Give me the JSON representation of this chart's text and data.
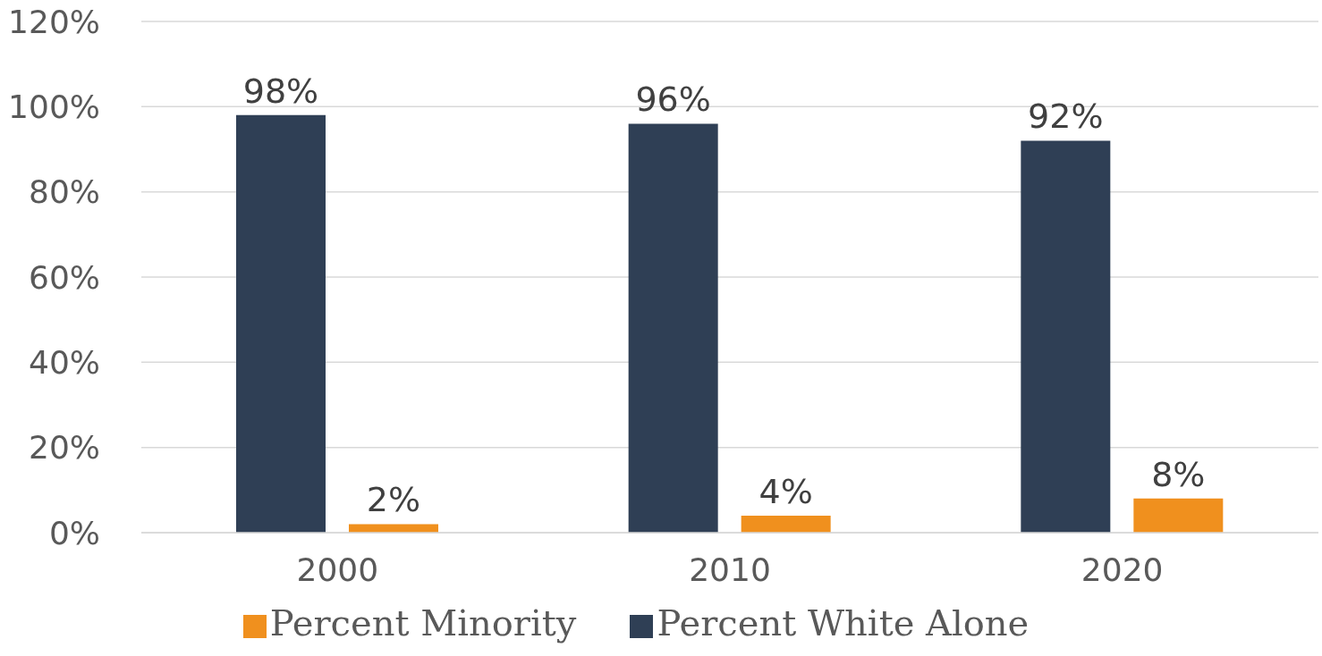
{
  "chart_data": {
    "type": "bar",
    "categories": [
      "2000",
      "2010",
      "2020"
    ],
    "series": [
      {
        "name": "Percent White Alone",
        "color": "#2f3f55",
        "values": [
          98,
          96,
          92
        ],
        "value_labels": [
          "98%",
          "96%",
          "92%"
        ]
      },
      {
        "name": "Percent Minority",
        "color": "#f0901e",
        "values": [
          2,
          4,
          8
        ],
        "value_labels": [
          "2%",
          "4%",
          "8%"
        ]
      }
    ],
    "ylim": [
      0,
      120
    ],
    "yticks": [
      {
        "value": 0,
        "label": "0%"
      },
      {
        "value": 20,
        "label": "20%"
      },
      {
        "value": 40,
        "label": "40%"
      },
      {
        "value": 60,
        "label": "60%"
      },
      {
        "value": 80,
        "label": "80%"
      },
      {
        "value": 100,
        "label": "100%"
      },
      {
        "value": 120,
        "label": "120%"
      }
    ],
    "grid": "y",
    "legend": "bottom"
  }
}
